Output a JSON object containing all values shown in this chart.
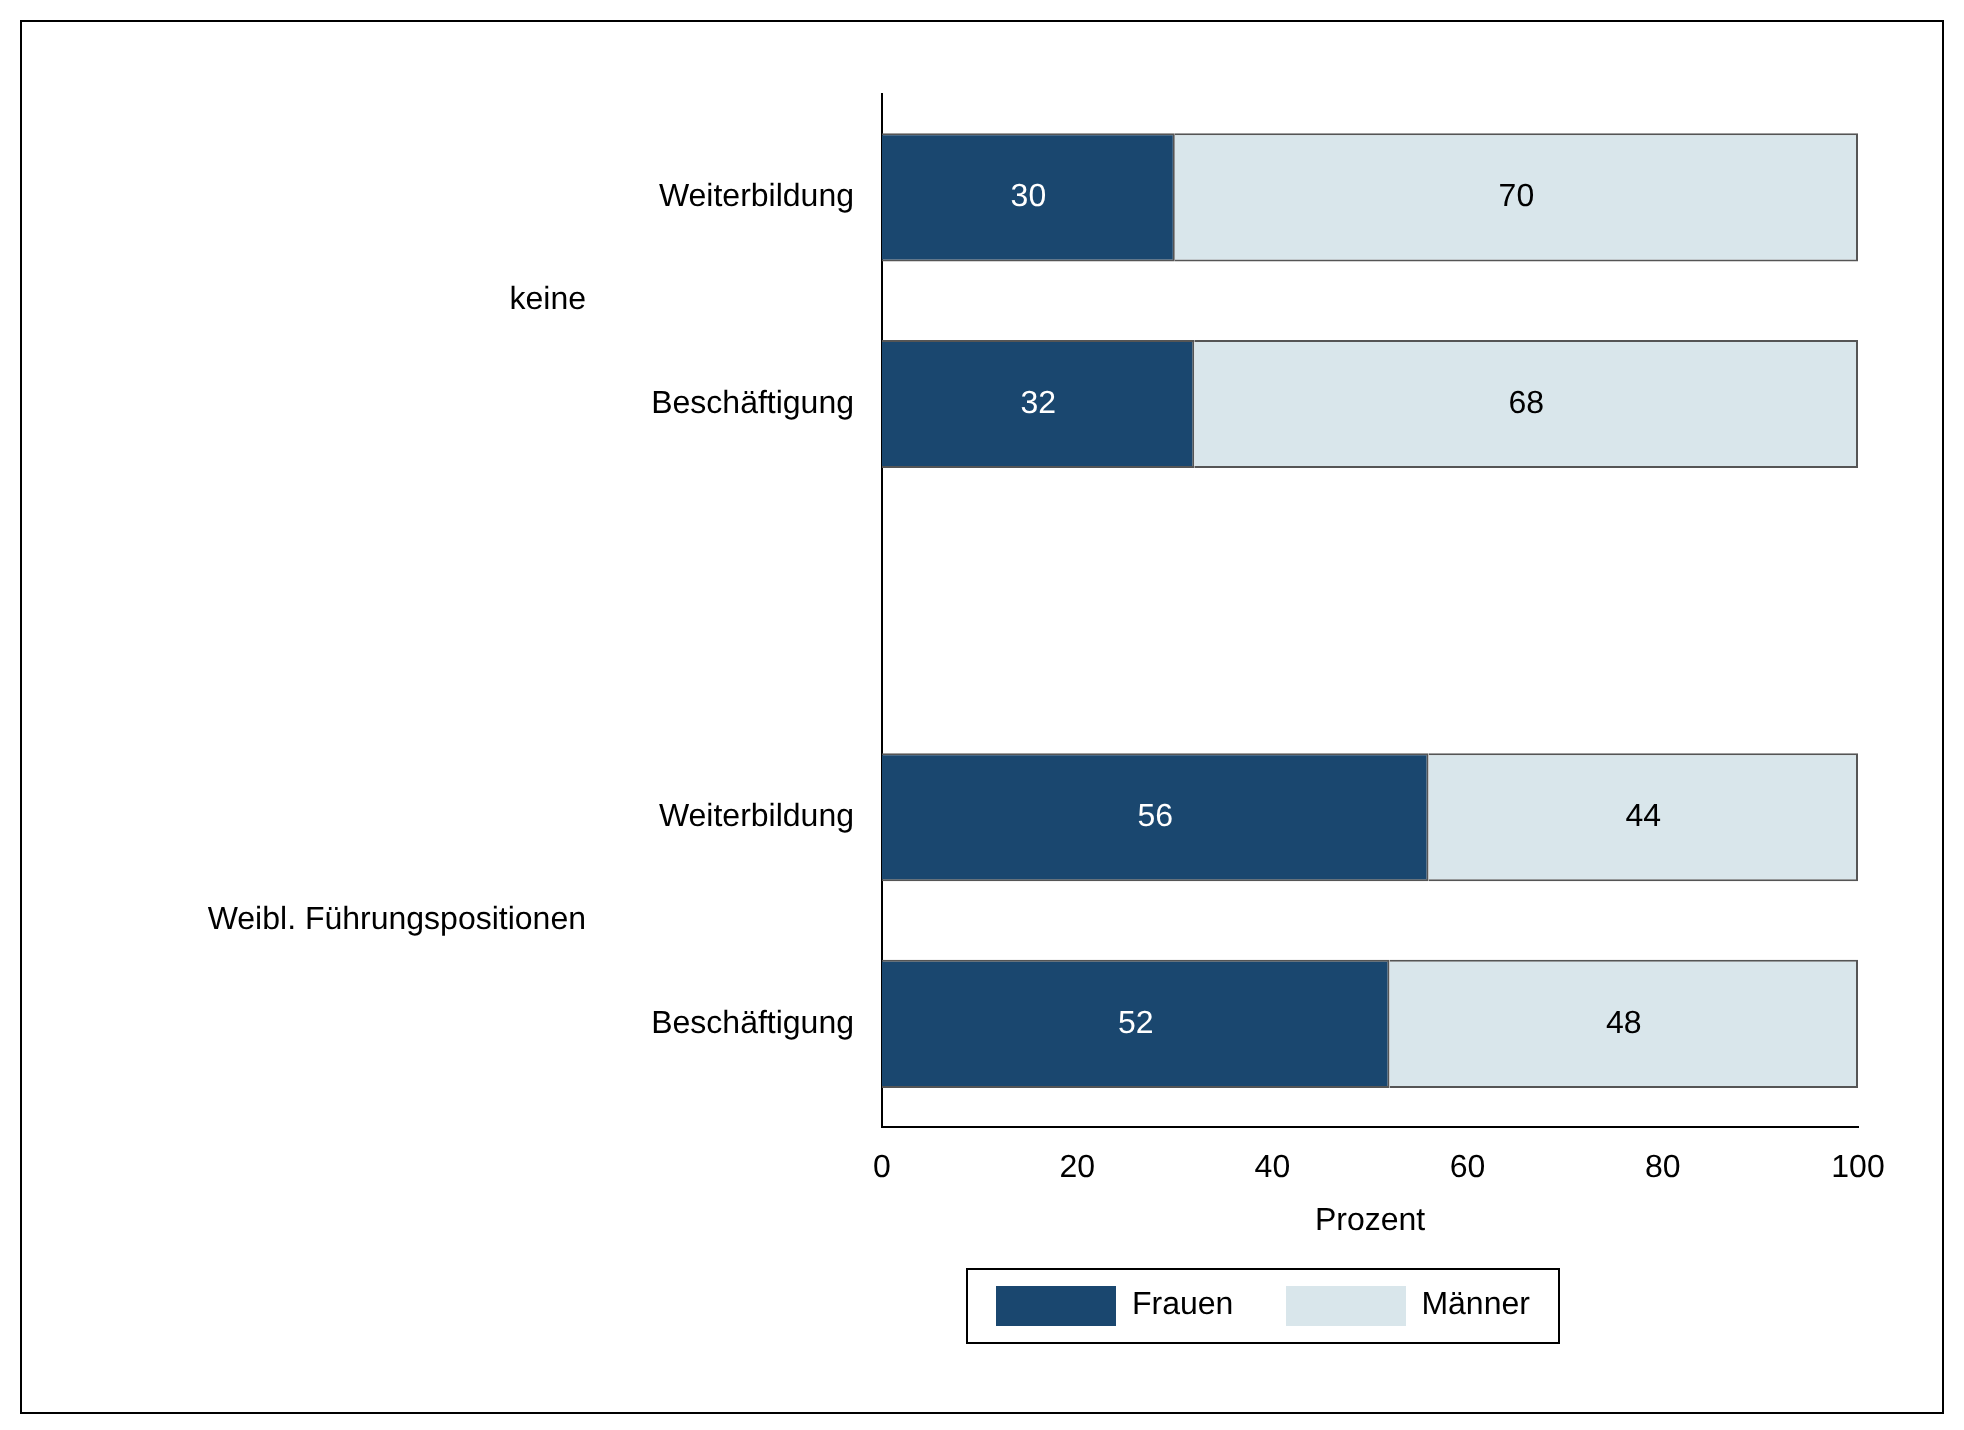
{
  "chart_data": {
    "type": "bar",
    "orientation": "horizontal",
    "stacked": true,
    "categories": [
      "Weiterbildung",
      "Beschäftigung",
      null,
      "Weiterbildung",
      "Beschäftigung"
    ],
    "series": [
      {
        "name": "Frauen",
        "color": "#1a476f",
        "values": [
          30,
          32,
          null,
          56,
          52
        ]
      },
      {
        "name": "Männer",
        "color": "#d9e6eb",
        "values": [
          70,
          68,
          null,
          44,
          48
        ]
      }
    ],
    "xlabel": "Prozent",
    "xlim": [
      0,
      100
    ],
    "xticks": [
      0,
      20,
      40,
      60,
      80,
      100
    ],
    "annotations": [
      "keine",
      "Weibl. Führungspositionen"
    ],
    "data_labels": true,
    "grid": false,
    "legend": "bottom"
  }
}
